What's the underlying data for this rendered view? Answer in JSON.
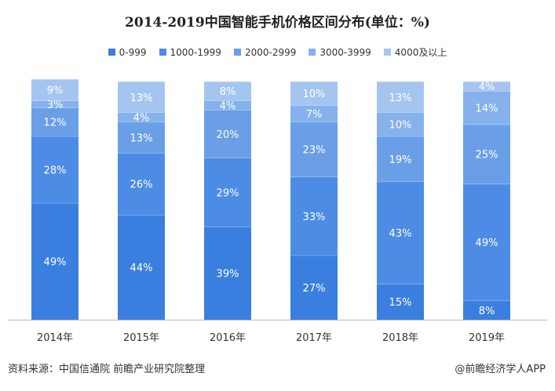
{
  "chart_data": {
    "type": "bar",
    "stacked": true,
    "title": "2014-2019中国智能手机价格区间分布(单位：%)",
    "categories": [
      "2014年",
      "2015年",
      "2016年",
      "2017年",
      "2018年",
      "2019年"
    ],
    "series": [
      {
        "name": "0-999",
        "color": "#3a7fdf",
        "values": [
          49,
          44,
          39,
          27,
          15,
          8
        ]
      },
      {
        "name": "1000-1999",
        "color": "#4d8ce4",
        "values": [
          28,
          26,
          29,
          33,
          43,
          49
        ]
      },
      {
        "name": "2000-2999",
        "color": "#6a9fe8",
        "values": [
          12,
          13,
          20,
          23,
          19,
          25
        ]
      },
      {
        "name": "3000-3999",
        "color": "#86b1ec",
        "values": [
          3,
          4,
          4,
          7,
          10,
          14
        ]
      },
      {
        "name": "4000及以上",
        "color": "#a5c5f1",
        "values": [
          9,
          13,
          8,
          10,
          13,
          4
        ]
      }
    ],
    "data_labels": [
      [
        "49%",
        "44%",
        "39%",
        "27%",
        "15%",
        "8%"
      ],
      [
        "28%",
        "26%",
        "29%",
        "33%",
        "43%",
        "49%"
      ],
      [
        "12%",
        "13%",
        "20%",
        "23%",
        "19%",
        "25%"
      ],
      [
        "3%",
        "4%",
        "4%",
        "7%",
        "10%",
        "14%"
      ],
      [
        "9%",
        "13%",
        "8%",
        "10%",
        "13%",
        "4%"
      ]
    ],
    "ylim": [
      0,
      100
    ],
    "grid": false,
    "legend_position": "top"
  },
  "footer": {
    "source": "资料来源：中国信通院 前瞻产业研究院整理",
    "credit": "@前瞻经济学人APP"
  }
}
